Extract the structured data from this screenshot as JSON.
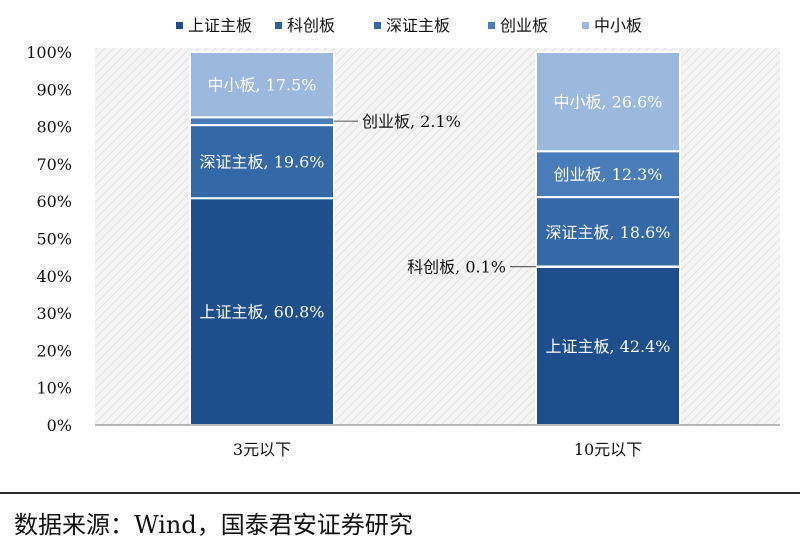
{
  "chart_data": {
    "type": "bar",
    "stacked": true,
    "percent": true,
    "categories": [
      "3元以下",
      "10元以下"
    ],
    "series": [
      {
        "name": "上证主板",
        "values": [
          60.8,
          42.4
        ],
        "labels": [
          "上证主板, 60.8%",
          "上证主板, 42.4%"
        ],
        "color": "#1f4e8c"
      },
      {
        "name": "科创板",
        "values": [
          0.0,
          0.1
        ],
        "labels": [
          "",
          "科创板, 0.1%"
        ],
        "color": "#2e5f9e"
      },
      {
        "name": "深证主板",
        "values": [
          19.6,
          18.6
        ],
        "labels": [
          "深证主板, 19.6%",
          "深证主板, 18.6%"
        ],
        "color": "#3568a6"
      },
      {
        "name": "创业板",
        "values": [
          2.1,
          12.3
        ],
        "labels": [
          "创业板, 2.1%",
          "创业板, 12.3%"
        ],
        "color": "#4a7cba"
      },
      {
        "name": "中小板",
        "values": [
          17.5,
          26.6
        ],
        "labels": [
          "中小板, 17.5%",
          "中小板, 26.6%"
        ],
        "color": "#9db8dd"
      }
    ],
    "y_ticks": [
      "0%",
      "10%",
      "20%",
      "30%",
      "40%",
      "50%",
      "60%",
      "70%",
      "80%",
      "90%",
      "100%"
    ],
    "ylim": [
      0,
      100
    ],
    "legend_position": "top",
    "grid": false
  },
  "source": "数据来源：Wind，国泰君安证券研究"
}
